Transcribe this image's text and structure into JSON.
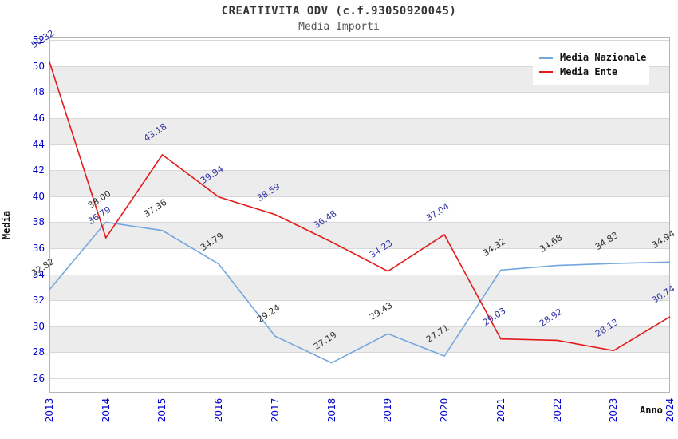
{
  "chart_data": {
    "type": "line",
    "title": "CREATTIVITA ODV (c.f.93050920045)",
    "subtitle": "Media Importi",
    "xlabel": "Anno",
    "ylabel": "Media",
    "x": [
      2013,
      2014,
      2015,
      2016,
      2017,
      2018,
      2019,
      2020,
      2021,
      2022,
      2023,
      2024
    ],
    "series": [
      {
        "name": "Media Nazionale",
        "color": "#74a7de",
        "label_color": "#333333",
        "values": [
          32.82,
          38.0,
          37.36,
          34.79,
          29.24,
          27.19,
          29.43,
          27.71,
          34.32,
          34.68,
          34.83,
          34.94
        ]
      },
      {
        "name": "Media Ente",
        "color": "#e31a1a",
        "label_color": "#3333a3",
        "values": [
          50.32,
          36.79,
          43.18,
          39.94,
          38.59,
          36.48,
          34.23,
          37.04,
          29.03,
          28.92,
          28.13,
          30.74
        ]
      }
    ],
    "y_ticks": [
      26,
      28,
      30,
      32,
      34,
      36,
      38,
      40,
      42,
      44,
      46,
      48,
      50,
      52
    ],
    "ylim": [
      24.9,
      52.25
    ],
    "bands": [
      [
        28,
        30
      ],
      [
        32,
        34
      ],
      [
        36,
        38
      ],
      [
        40,
        42
      ],
      [
        44,
        46
      ],
      [
        48,
        50
      ]
    ],
    "grid": true,
    "point_labels": true,
    "legend_position": "top-right",
    "tick_color": "#0000cc",
    "band_color": "#ececec"
  }
}
